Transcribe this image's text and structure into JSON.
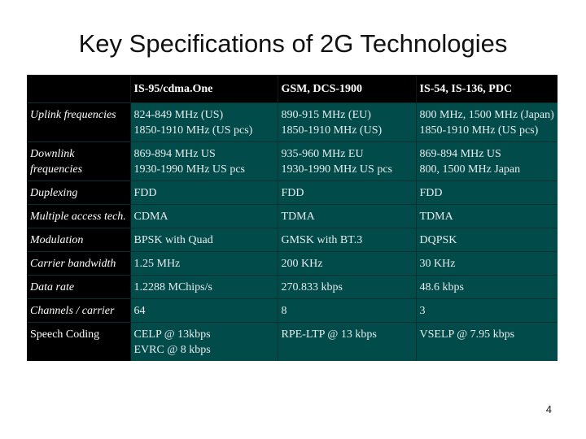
{
  "title": "Key Specifications of 2G Technologies",
  "table": {
    "headers": [
      "",
      "IS-95/cdma.One",
      "GSM, DCS-1900",
      "IS-54, IS-136, PDC"
    ],
    "rows": [
      {
        "label": "Uplink frequencies",
        "cells": [
          [
            "824-849 MHz (US)",
            "1850-1910 MHz (US pcs)"
          ],
          [
            "890-915 MHz (EU)",
            "1850-1910 MHz (US)"
          ],
          [
            "800 MHz, 1500 MHz (Japan)",
            "1850-1910 MHz (US pcs)"
          ]
        ]
      },
      {
        "label": "Downlink frequencies",
        "cells": [
          [
            "869-894 MHz US",
            "1930-1990 MHz US pcs"
          ],
          [
            "935-960 MHz EU",
            "1930-1990 MHz US pcs"
          ],
          [
            "869-894 MHz US",
            "800, 1500 MHz Japan"
          ]
        ]
      },
      {
        "label": "Duplexing",
        "cells": [
          [
            "FDD"
          ],
          [
            "FDD"
          ],
          [
            "FDD"
          ]
        ]
      },
      {
        "label": "Multiple access tech.",
        "cells": [
          [
            "CDMA"
          ],
          [
            "TDMA"
          ],
          [
            "TDMA"
          ]
        ]
      },
      {
        "label": "Modulation",
        "cells": [
          [
            "BPSK with Quad"
          ],
          [
            "GMSK with BT.3"
          ],
          [
            "DQPSK"
          ]
        ]
      },
      {
        "label": "Carrier bandwidth",
        "cells": [
          [
            "1.25 MHz"
          ],
          [
            "200 KHz"
          ],
          [
            "30 KHz"
          ]
        ]
      },
      {
        "label": "Data rate",
        "cells": [
          [
            "1.2288 MChips/s"
          ],
          [
            "270.833 kbps"
          ],
          [
            "48.6 kbps"
          ]
        ]
      },
      {
        "label": "Channels / carrier",
        "cells": [
          [
            "64"
          ],
          [
            "8"
          ],
          [
            "3"
          ]
        ]
      },
      {
        "label": "Speech Coding",
        "cells": [
          [
            "CELP @ 13kbps",
            "EVRC @ 8 kbps"
          ],
          [
            "RPE-LTP @ 13 kbps"
          ],
          [
            "VSELP @ 7.95 kbps"
          ]
        ]
      }
    ]
  },
  "page_number": "4"
}
